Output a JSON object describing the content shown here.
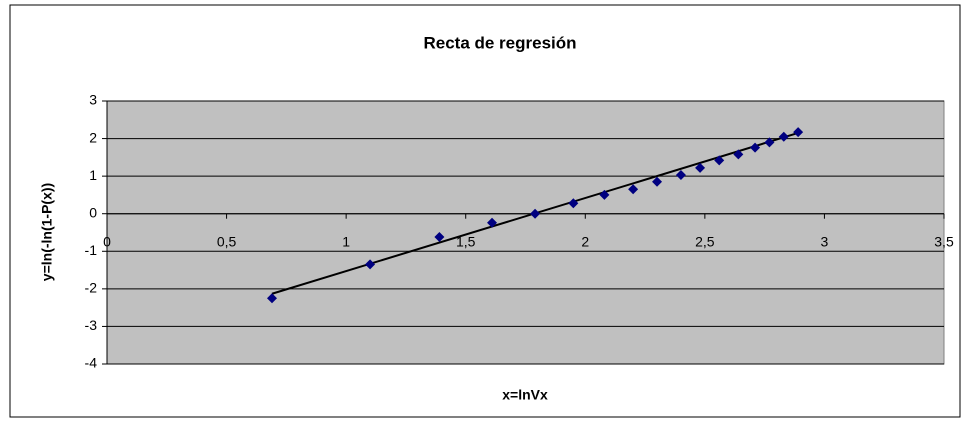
{
  "chart_data": {
    "type": "scatter",
    "title": "Recta de regresión",
    "xlabel": "x=lnVx",
    "ylabel": "y=ln(-ln(1-P(x))",
    "series": [
      {
        "color": "#000080",
        "x": [
          0.69,
          1.1,
          1.39,
          1.61,
          1.79,
          1.95,
          2.08,
          2.2,
          2.3,
          2.4,
          2.48,
          2.56,
          2.64,
          2.71,
          2.77,
          2.83,
          2.89
        ],
        "values": [
          -2.25,
          -1.35,
          -0.62,
          -0.24,
          0.0,
          0.28,
          0.5,
          0.65,
          0.85,
          1.03,
          1.22,
          1.42,
          1.58,
          1.76,
          1.9,
          2.05,
          2.17
        ]
      }
    ],
    "trendline": {
      "color": "#000000",
      "x": [
        0.69,
        2.89
      ],
      "values": [
        -2.13,
        2.15
      ]
    },
    "xlim": [
      0,
      3.5
    ],
    "xticks": [
      0,
      {
        "value": 0.5,
        "label": "0,5"
      },
      1,
      {
        "value": 1.5,
        "label": "1,5"
      },
      2,
      {
        "value": 2.5,
        "label": "2,5"
      },
      3,
      {
        "value": 3.5,
        "label": "3,5"
      }
    ],
    "ylim": [
      -4,
      3
    ],
    "yticks": [
      -4,
      -3,
      -2,
      -1,
      0,
      1,
      2,
      3
    ],
    "grid": true,
    "plot_background": "#c0c0c0"
  }
}
